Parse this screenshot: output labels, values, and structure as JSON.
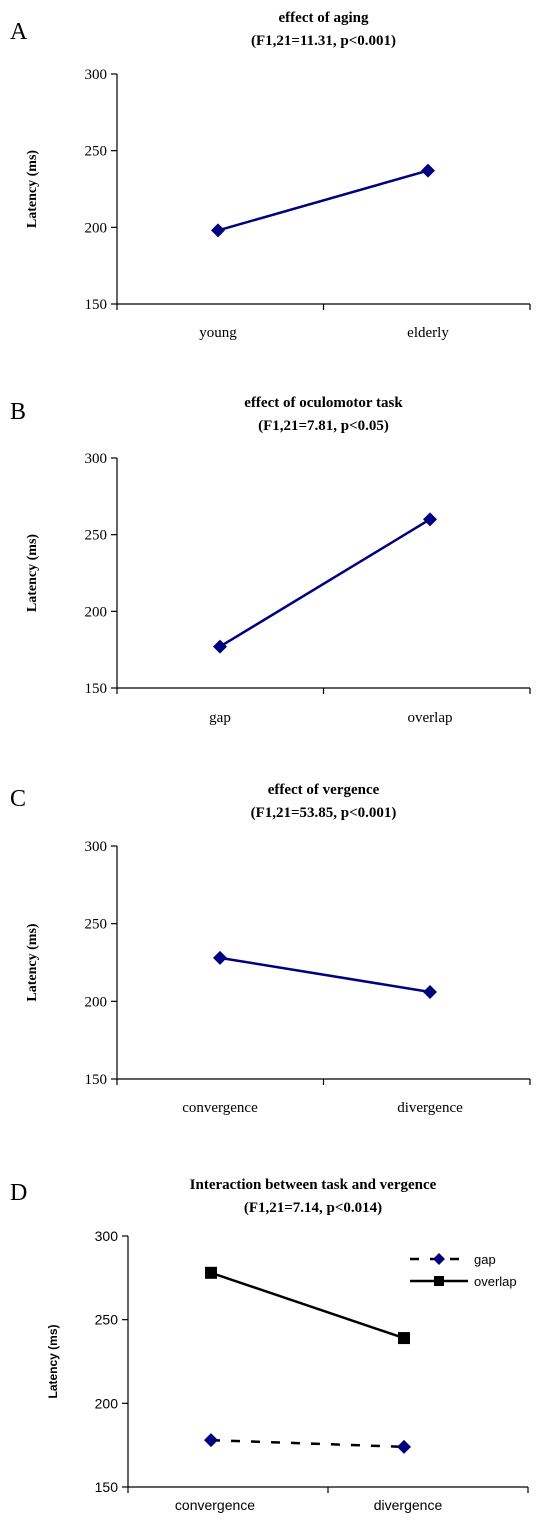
{
  "chart_data": [
    {
      "type": "line",
      "panel": "A",
      "title": "effect of aging",
      "subtitle": "(F1,21=11.31, p<0.001)",
      "ylabel": "Latency (ms)",
      "xlabel": "",
      "categories": [
        "young",
        "elderly"
      ],
      "series": [
        {
          "values": [
            198,
            237
          ],
          "color": "#000080",
          "marker": "diamond",
          "dash": "solid"
        }
      ],
      "ylim": [
        150,
        300
      ],
      "yticks": [
        150,
        200,
        250,
        300
      ],
      "grid": false
    },
    {
      "type": "line",
      "panel": "B",
      "title": "effect of oculomotor task",
      "subtitle": "(F1,21=7.81, p<0.05)",
      "ylabel": "Latency (ms)",
      "xlabel": "",
      "categories": [
        "gap",
        "overlap"
      ],
      "series": [
        {
          "values": [
            177,
            260
          ],
          "color": "#000080",
          "marker": "diamond",
          "dash": "solid"
        }
      ],
      "ylim": [
        150,
        300
      ],
      "yticks": [
        150,
        200,
        250,
        300
      ],
      "grid": false
    },
    {
      "type": "line",
      "panel": "C",
      "title": "effect of vergence",
      "subtitle": "(F1,21=53.85, p<0.001)",
      "ylabel": "Latency (ms)",
      "xlabel": "",
      "categories": [
        "convergence",
        "divergence"
      ],
      "series": [
        {
          "values": [
            228,
            206
          ],
          "color": "#000080",
          "marker": "diamond",
          "dash": "solid"
        }
      ],
      "ylim": [
        150,
        300
      ],
      "yticks": [
        150,
        200,
        250,
        300
      ],
      "grid": false
    },
    {
      "type": "line",
      "panel": "D",
      "title": "Interaction between task and vergence",
      "subtitle": "(F1,21=7.14, p<0.014)",
      "ylabel": "Latency (ms)",
      "xlabel": "",
      "categories": [
        "convergence",
        "divergence"
      ],
      "series": [
        {
          "name": "gap",
          "values": [
            178,
            174
          ],
          "color": "#000080",
          "marker": "diamond",
          "dash": "dashed",
          "line_color": "#000000"
        },
        {
          "name": "overlap",
          "values": [
            278,
            239
          ],
          "color": "#000000",
          "marker": "square",
          "dash": "solid",
          "line_color": "#000000"
        }
      ],
      "ylim": [
        150,
        300
      ],
      "yticks": [
        150,
        200,
        250,
        300
      ],
      "grid": false,
      "legend": "top-right"
    }
  ]
}
